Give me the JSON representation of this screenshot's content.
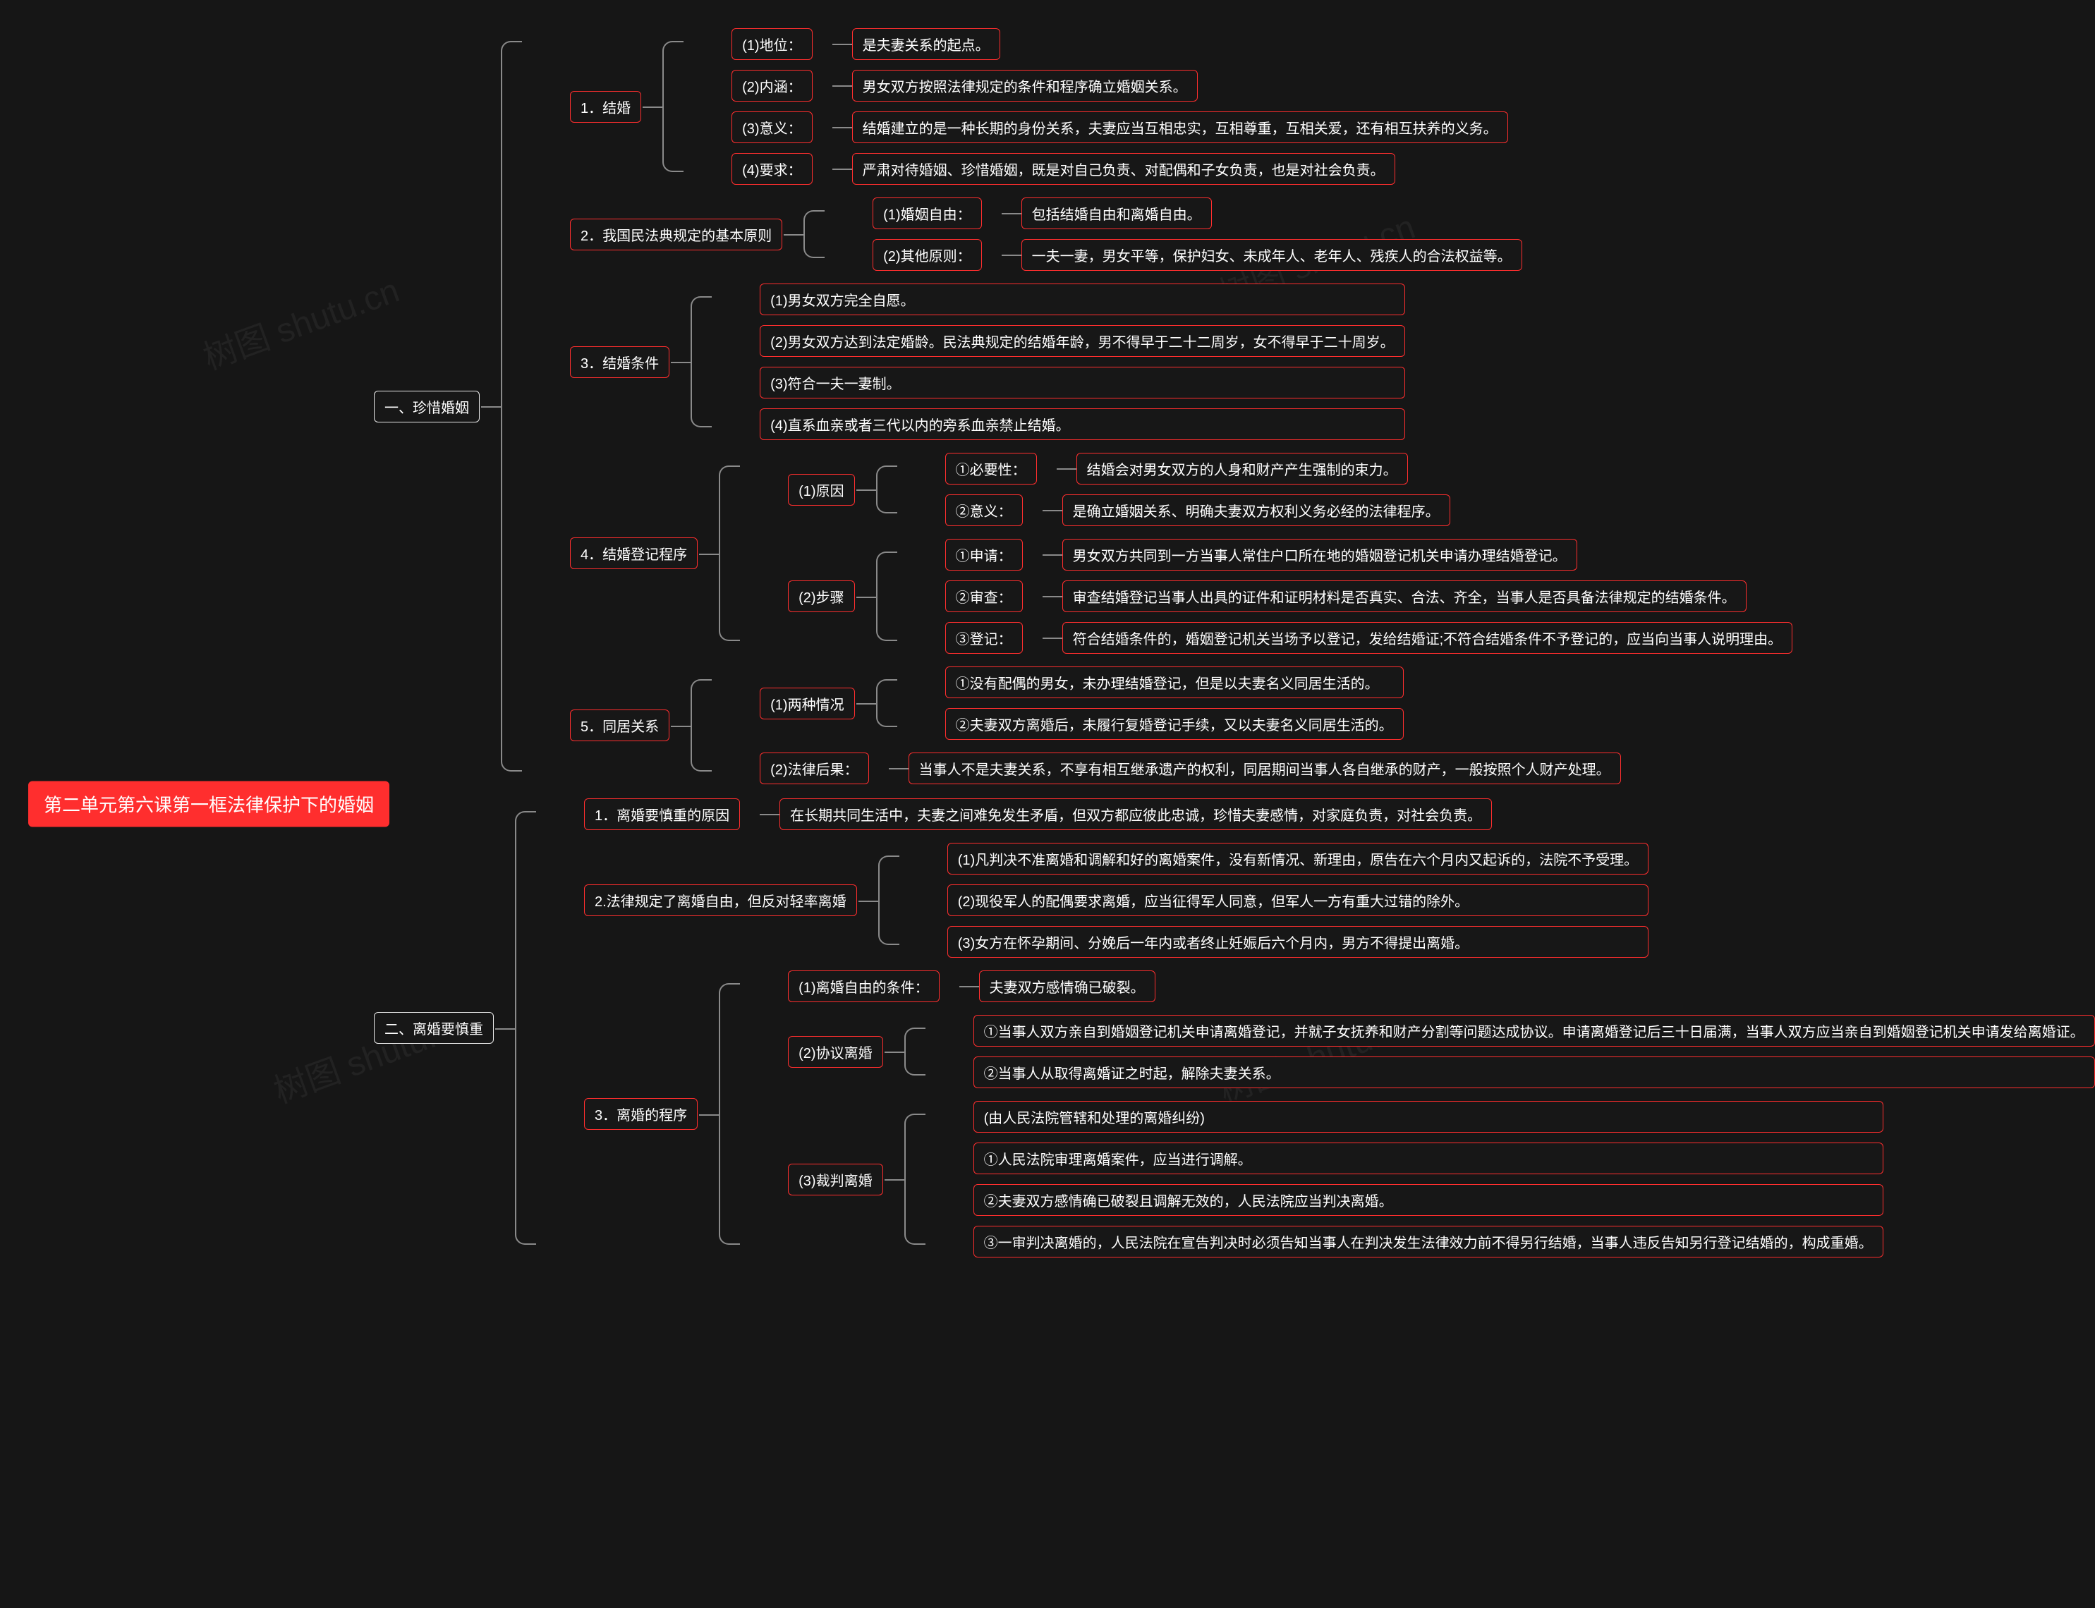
{
  "watermark": "树图 shutu.cn",
  "root": "第二单元第六课第一框法律保护下的婚姻",
  "colors": {
    "root_bg": "#ff2e2e",
    "node_border": "#ff2e2e",
    "white_border": "#e9e9e9",
    "bg": "#161616",
    "connector": "#8a8a8a"
  },
  "font": {
    "root_size": 26,
    "node_size": 20
  },
  "b1": {
    "title": "一、珍惜婚姻",
    "s1": {
      "title": "1．结婚",
      "i1k": "(1)地位：",
      "i1v": "是夫妻关系的起点。",
      "i2k": "(2)内涵：",
      "i2v": "男女双方按照法律规定的条件和程序确立婚姻关系。",
      "i3k": "(3)意义：",
      "i3v": "结婚建立的是一种长期的身份关系，夫妻应当互相忠实，互相尊重，互相关爱，还有相互扶养的义务。",
      "i4k": "(4)要求：",
      "i4v": "严肃对待婚姻、珍惜婚姻，既是对自己负责、对配偶和子女负责，也是对社会负责。"
    },
    "s2": {
      "title": "2．我国民法典规定的基本原则",
      "i1k": "(1)婚姻自由：",
      "i1v": "包括结婚自由和离婚自由。",
      "i2k": "(2)其他原则：",
      "i2v": "一夫一妻，男女平等，保护妇女、未成年人、老年人、残疾人的合法权益等。"
    },
    "s3": {
      "title": "3．结婚条件",
      "i1": "(1)男女双方完全自愿。",
      "i2": "(2)男女双方达到法定婚龄。民法典规定的结婚年龄，男不得早于二十二周岁，女不得早于二十周岁。",
      "i3": "(3)符合一夫一妻制。",
      "i4": "(4)直系血亲或者三代以内的旁系血亲禁止结婚。"
    },
    "s4": {
      "title": "4．结婚登记程序",
      "r1": {
        "k": "(1)原因",
        "a1k": "①必要性：",
        "a1v": "结婚会对男女双方的人身和财产产生强制的束力。",
        "a2k": "②意义：",
        "a2v": "是确立婚姻关系、明确夫妻双方权利义务必经的法律程序。"
      },
      "r2": {
        "k": "(2)步骤",
        "a1k": "①申请：",
        "a1v": "男女双方共同到一方当事人常住户口所在地的婚姻登记机关申请办理结婚登记。",
        "a2k": "②审查：",
        "a2v": "审查结婚登记当事人出具的证件和证明材料是否真实、合法、齐全，当事人是否具备法律规定的结婚条件。",
        "a3k": "③登记：",
        "a3v": "符合结婚条件的，婚姻登记机关当场予以登记，发给结婚证;不符合结婚条件不予登记的，应当向当事人说明理由。"
      }
    },
    "s5": {
      "title": "5．同居关系",
      "r1": {
        "k": "(1)两种情况",
        "a1": "①没有配偶的男女，未办理结婚登记，但是以夫妻名义同居生活的。",
        "a2": "②夫妻双方离婚后，未履行复婚登记手续，又以夫妻名义同居生活的。"
      },
      "r2k": "(2)法律后果：",
      "r2v": "当事人不是夫妻关系，不享有相互继承遗产的权利，同居期间当事人各自继承的财产，一般按照个人财产处理。"
    }
  },
  "b2": {
    "title": "二、离婚要慎重",
    "s1k": "1．离婚要慎重的原因",
    "s1v": "在长期共同生活中，夫妻之间难免发生矛盾，但双方都应彼此忠诚，珍惜夫妻感情，对家庭负责，对社会负责。",
    "s2": {
      "title": "2.法律规定了离婚自由，但反对轻率离婚",
      "i1": "(1)凡判决不准离婚和调解和好的离婚案件，没有新情况、新理由，原告在六个月内又起诉的，法院不予受理。",
      "i2": "(2)现役军人的配偶要求离婚，应当征得军人同意，但军人一方有重大过错的除外。",
      "i3": "(3)女方在怀孕期间、分娩后一年内或者终止妊娠后六个月内，男方不得提出离婚。"
    },
    "s3": {
      "title": "3．离婚的程序",
      "r1k": "(1)离婚自由的条件：",
      "r1v": "夫妻双方感情确已破裂。",
      "r2": {
        "k": "(2)协议离婚",
        "a1": "①当事人双方亲自到婚姻登记机关申请离婚登记，并就子女抚养和财产分割等问题达成协议。申请离婚登记后三十日届满，当事人双方应当亲自到婚姻登记机关申请发给离婚证。",
        "a2": "②当事人从取得离婚证之时起，解除夫妻关系。"
      },
      "r3": {
        "k": "(3)裁判离婚",
        "a0": "(由人民法院管辖和处理的离婚纠纷)",
        "a1": "①人民法院审理离婚案件，应当进行调解。",
        "a2": "②夫妻双方感情确已破裂且调解无效的，人民法院应当判决离婚。",
        "a3": "③一审判决离婚的，人民法院在宣告判决时必须告知当事人在判决发生法律效力前不得另行结婚，当事人违反告知另行登记结婚的，构成重婚。"
      }
    }
  }
}
